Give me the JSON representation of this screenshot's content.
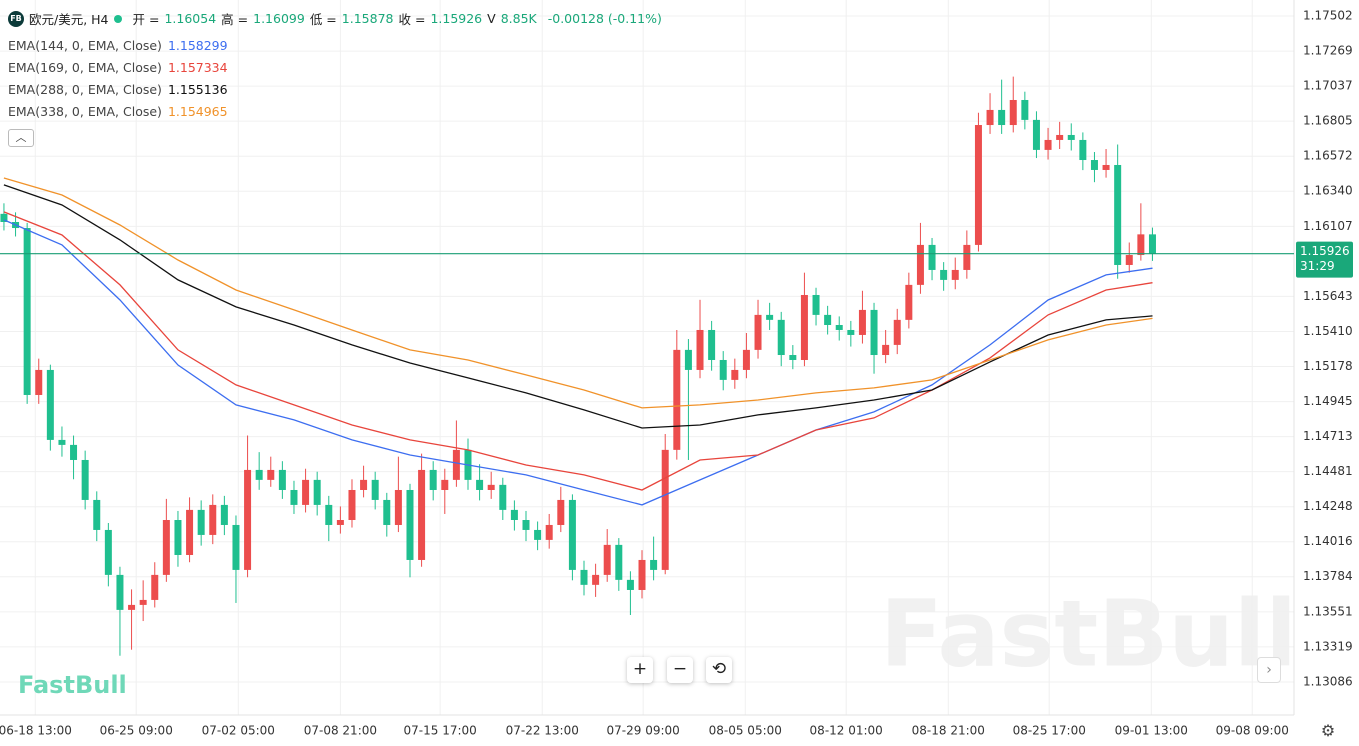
{
  "header": {
    "badge": "FB",
    "symbol": "欧元/美元, H4",
    "open_label": "开 =",
    "high_label": "高 =",
    "low_label": "低 =",
    "close_label": "收 =",
    "volume_label": "V",
    "volume": "8.85K",
    "change": "-0.00128 (-0.11%)"
  },
  "chart_data": {
    "type": "candlestick",
    "up_color": "#ec4d4d",
    "down_color": "#1fbf8f",
    "grid": true,
    "candles": [
      [
        1.1619,
        1.1626,
        1.1608,
        1.16136
      ],
      [
        1.16136,
        1.162,
        1.1604,
        1.16096
      ],
      [
        1.16096,
        1.1613,
        1.1493,
        1.14989
      ],
      [
        1.14989,
        1.1523,
        1.1493,
        1.15155
      ],
      [
        1.15155,
        1.1519,
        1.1462,
        1.14691
      ],
      [
        1.14691,
        1.1478,
        1.1458,
        1.14658
      ],
      [
        1.14658,
        1.1472,
        1.1443,
        1.14558
      ],
      [
        1.14558,
        1.1462,
        1.1423,
        1.14293
      ],
      [
        1.14293,
        1.1435,
        1.1402,
        1.14094
      ],
      [
        1.14094,
        1.1414,
        1.1372,
        1.13796
      ],
      [
        1.13796,
        1.1385,
        1.1326,
        1.13564
      ],
      [
        1.13564,
        1.137,
        1.133,
        1.13597
      ],
      [
        1.13597,
        1.1376,
        1.1349,
        1.1363
      ],
      [
        1.1363,
        1.1388,
        1.1358,
        1.13796
      ],
      [
        1.13796,
        1.143,
        1.1375,
        1.1416
      ],
      [
        1.1416,
        1.1422,
        1.1385,
        1.13928
      ],
      [
        1.13928,
        1.1431,
        1.1388,
        1.14227
      ],
      [
        1.14227,
        1.1429,
        1.1399,
        1.14061
      ],
      [
        1.14061,
        1.1433,
        1.14,
        1.1426
      ],
      [
        1.1426,
        1.1432,
        1.1406,
        1.14127
      ],
      [
        1.14127,
        1.1419,
        1.1361,
        1.13829
      ],
      [
        1.13829,
        1.1472,
        1.1378,
        1.14492
      ],
      [
        1.14492,
        1.1461,
        1.1436,
        1.14426
      ],
      [
        1.14426,
        1.1458,
        1.1438,
        1.14492
      ],
      [
        1.14492,
        1.1455,
        1.143,
        1.14359
      ],
      [
        1.14359,
        1.1442,
        1.142,
        1.1426
      ],
      [
        1.1426,
        1.145,
        1.1421,
        1.14426
      ],
      [
        1.14426,
        1.1448,
        1.1419,
        1.1426
      ],
      [
        1.1426,
        1.1432,
        1.1402,
        1.14127
      ],
      [
        1.14127,
        1.1425,
        1.1407,
        1.1416
      ],
      [
        1.1416,
        1.1443,
        1.1411,
        1.14359
      ],
      [
        1.14359,
        1.1452,
        1.1431,
        1.14426
      ],
      [
        1.14426,
        1.1448,
        1.1423,
        1.14293
      ],
      [
        1.14293,
        1.1434,
        1.1405,
        1.14127
      ],
      [
        1.14127,
        1.1458,
        1.1408,
        1.14359
      ],
      [
        1.14359,
        1.144,
        1.1378,
        1.13895
      ],
      [
        1.13895,
        1.146,
        1.1385,
        1.14492
      ],
      [
        1.14492,
        1.1455,
        1.1429,
        1.14359
      ],
      [
        1.14359,
        1.145,
        1.142,
        1.14426
      ],
      [
        1.14426,
        1.1482,
        1.1438,
        1.14625
      ],
      [
        1.14625,
        1.147,
        1.1436,
        1.14426
      ],
      [
        1.14426,
        1.1453,
        1.1429,
        1.14359
      ],
      [
        1.14359,
        1.1448,
        1.143,
        1.14393
      ],
      [
        1.14393,
        1.1444,
        1.1416,
        1.14227
      ],
      [
        1.14227,
        1.1429,
        1.1409,
        1.1416
      ],
      [
        1.1416,
        1.1422,
        1.1402,
        1.14094
      ],
      [
        1.14094,
        1.1415,
        1.1396,
        1.14028
      ],
      [
        1.14028,
        1.142,
        1.1397,
        1.14127
      ],
      [
        1.14127,
        1.1438,
        1.1408,
        1.14293
      ],
      [
        1.14293,
        1.1433,
        1.1376,
        1.13829
      ],
      [
        1.13829,
        1.1389,
        1.1366,
        1.1373
      ],
      [
        1.1373,
        1.1387,
        1.1365,
        1.13796
      ],
      [
        1.13796,
        1.141,
        1.1375,
        1.13995
      ],
      [
        1.13995,
        1.1404,
        1.1369,
        1.13763
      ],
      [
        1.13763,
        1.1382,
        1.1353,
        1.13696
      ],
      [
        1.13696,
        1.1396,
        1.1364,
        1.13895
      ],
      [
        1.13895,
        1.1405,
        1.1376,
        1.13829
      ],
      [
        1.13829,
        1.1473,
        1.138,
        1.14625
      ],
      [
        1.14625,
        1.1542,
        1.1456,
        1.15288
      ],
      [
        1.15288,
        1.1536,
        1.14558,
        1.15155
      ],
      [
        1.15155,
        1.1562,
        1.151,
        1.1542
      ],
      [
        1.1542,
        1.1548,
        1.1515,
        1.15221
      ],
      [
        1.15221,
        1.1528,
        1.1502,
        1.15089
      ],
      [
        1.15089,
        1.1523,
        1.1503,
        1.15155
      ],
      [
        1.15155,
        1.154,
        1.151,
        1.15288
      ],
      [
        1.15288,
        1.1562,
        1.1523,
        1.1552
      ],
      [
        1.1552,
        1.156,
        1.1542,
        1.15487
      ],
      [
        1.15487,
        1.1554,
        1.1518,
        1.15254
      ],
      [
        1.15254,
        1.1532,
        1.1516,
        1.15221
      ],
      [
        1.15221,
        1.158,
        1.1518,
        1.15652
      ],
      [
        1.15652,
        1.157,
        1.1545,
        1.1552
      ],
      [
        1.1552,
        1.1558,
        1.1539,
        1.15453
      ],
      [
        1.15453,
        1.1551,
        1.1535,
        1.1542
      ],
      [
        1.1542,
        1.1548,
        1.1531,
        1.15387
      ],
      [
        1.15387,
        1.1568,
        1.1533,
        1.15553
      ],
      [
        1.15553,
        1.156,
        1.1513,
        1.15254
      ],
      [
        1.15254,
        1.1542,
        1.152,
        1.15321
      ],
      [
        1.15321,
        1.1556,
        1.1526,
        1.15487
      ],
      [
        1.15487,
        1.158,
        1.1543,
        1.15719
      ],
      [
        1.15719,
        1.1613,
        1.1566,
        1.15984
      ],
      [
        1.15984,
        1.1603,
        1.1575,
        1.15818
      ],
      [
        1.15818,
        1.1587,
        1.1568,
        1.15752
      ],
      [
        1.15752,
        1.159,
        1.1569,
        1.15818
      ],
      [
        1.15818,
        1.1608,
        1.1576,
        1.15984
      ],
      [
        1.15984,
        1.1686,
        1.1594,
        1.16779
      ],
      [
        1.16779,
        1.1699,
        1.1672,
        1.16879
      ],
      [
        1.16879,
        1.1708,
        1.1672,
        1.16779
      ],
      [
        1.16779,
        1.171,
        1.1673,
        1.16945
      ],
      [
        1.16945,
        1.17,
        1.1675,
        1.16813
      ],
      [
        1.16813,
        1.1687,
        1.1656,
        1.16614
      ],
      [
        1.16614,
        1.1676,
        1.1655,
        1.1668
      ],
      [
        1.1668,
        1.168,
        1.1662,
        1.16713
      ],
      [
        1.16713,
        1.1679,
        1.1661,
        1.1668
      ],
      [
        1.1668,
        1.1673,
        1.1648,
        1.16547
      ],
      [
        1.16547,
        1.166,
        1.164,
        1.16481
      ],
      [
        1.16481,
        1.1662,
        1.1643,
        1.16514
      ],
      [
        1.16514,
        1.1665,
        1.1576,
        1.15851
      ],
      [
        1.15851,
        1.16,
        1.158,
        1.15917
      ],
      [
        1.15917,
        1.1626,
        1.1588,
        1.16054
      ],
      [
        1.16054,
        1.16099,
        1.15878,
        1.15926
      ]
    ],
    "series": [
      {
        "name": "EMA(144, 0, EMA, Close)",
        "color": "#3d6ef0",
        "x": [
          0,
          5,
          10,
          15,
          20,
          25,
          30,
          35,
          40,
          45,
          50,
          55,
          60,
          65,
          70,
          75,
          80,
          85,
          90,
          95,
          99
        ],
        "values": [
          1.1615,
          1.15984,
          1.15619,
          1.15188,
          1.14923,
          1.14824,
          1.14691,
          1.14591,
          1.14525,
          1.14459,
          1.14359,
          1.1426,
          1.14426,
          1.14591,
          1.14757,
          1.14877,
          1.15056,
          1.15321,
          1.15619,
          1.15785,
          1.158299
        ]
      },
      {
        "name": "EMA(169, 0, EMA, Close)",
        "color": "#e8453c",
        "x": [
          0,
          5,
          10,
          15,
          20,
          25,
          30,
          35,
          40,
          45,
          50,
          55,
          60,
          65,
          70,
          75,
          80,
          85,
          90,
          95,
          99
        ],
        "values": [
          1.16203,
          1.1605,
          1.15719,
          1.15288,
          1.15056,
          1.14923,
          1.1479,
          1.14691,
          1.14625,
          1.14525,
          1.14459,
          1.14359,
          1.14558,
          1.14591,
          1.14757,
          1.14837,
          1.15022,
          1.15235,
          1.1552,
          1.15685,
          1.157334
        ]
      },
      {
        "name": "EMA(288, 0, EMA, Close)",
        "color": "#111111",
        "x": [
          0,
          5,
          10,
          15,
          20,
          25,
          30,
          35,
          40,
          45,
          50,
          55,
          60,
          65,
          70,
          75,
          80,
          85,
          90,
          95,
          99
        ],
        "values": [
          1.16382,
          1.16249,
          1.16017,
          1.15752,
          1.15573,
          1.15453,
          1.15321,
          1.15201,
          1.15102,
          1.15003,
          1.1489,
          1.1477,
          1.1479,
          1.14857,
          1.14903,
          1.14956,
          1.15022,
          1.15208,
          1.15387,
          1.15487,
          1.155136
        ]
      },
      {
        "name": "EMA(338, 0, EMA, Close)",
        "color": "#f0922a",
        "x": [
          0,
          5,
          10,
          15,
          20,
          25,
          30,
          35,
          40,
          45,
          50,
          55,
          60,
          65,
          70,
          75,
          80,
          85,
          90,
          95,
          99
        ],
        "values": [
          1.16428,
          1.16315,
          1.16116,
          1.15884,
          1.15685,
          1.15553,
          1.1542,
          1.15288,
          1.15221,
          1.15122,
          1.15022,
          1.14903,
          1.14923,
          1.14956,
          1.15003,
          1.15036,
          1.15089,
          1.15221,
          1.15354,
          1.15453,
          1.154965
        ]
      }
    ],
    "xlim": [
      -0.34,
      111.2
    ],
    "xticks": [
      {
        "value": 2.7,
        "label": "06-18 13:00"
      },
      {
        "value": 11.4,
        "label": "06-25 09:00"
      },
      {
        "value": 20.2,
        "label": "07-02 05:00"
      },
      {
        "value": 29,
        "label": "07-08 21:00"
      },
      {
        "value": 37.6,
        "label": "07-15 17:00"
      },
      {
        "value": 46.4,
        "label": "07-22 13:00"
      },
      {
        "value": 55.1,
        "label": "07-29 09:00"
      },
      {
        "value": 63.9,
        "label": "08-05 05:00"
      },
      {
        "value": 72.6,
        "label": "08-12 01:00"
      },
      {
        "value": 81.4,
        "label": "08-18 21:00"
      },
      {
        "value": 90.1,
        "label": "08-25 17:00"
      },
      {
        "value": 98.9,
        "label": "09-01 13:00"
      },
      {
        "value": 107.6,
        "label": "09-08 09:00"
      }
    ],
    "ylim": [
      1.12867,
      1.17608
    ],
    "yticks": [
      1.17502,
      1.17269,
      1.17037,
      1.16805,
      1.16572,
      {
        "value": 1.1634,
        "label": "1.16340"
      },
      1.16107,
      1.15643,
      {
        "value": 1.1541,
        "label": "1.15410"
      },
      1.15178,
      1.14945,
      1.14713,
      1.14481,
      1.14248,
      1.14016,
      1.13784,
      1.13551,
      1.13319,
      1.13086
    ]
  },
  "ui": {
    "countdown": "31:29",
    "watermark": "FastBull",
    "logo": "FastBull"
  }
}
